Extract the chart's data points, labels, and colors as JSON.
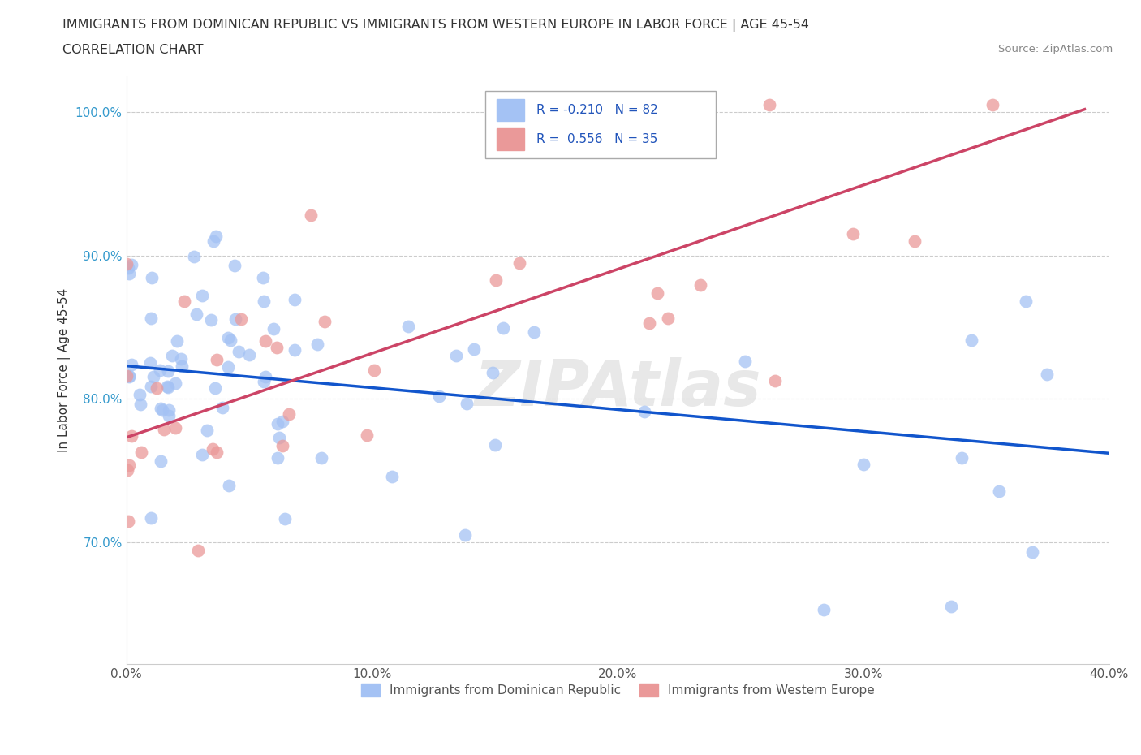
{
  "title_line1": "IMMIGRANTS FROM DOMINICAN REPUBLIC VS IMMIGRANTS FROM WESTERN EUROPE IN LABOR FORCE | AGE 45-54",
  "title_line2": "CORRELATION CHART",
  "source_text": "Source: ZipAtlas.com",
  "ylabel": "In Labor Force | Age 45-54",
  "xmin": 0.0,
  "xmax": 0.4,
  "ymin": 0.615,
  "ymax": 1.025,
  "ytick_labels": [
    "70.0%",
    "80.0%",
    "90.0%",
    "100.0%"
  ],
  "ytick_values": [
    0.7,
    0.8,
    0.9,
    1.0
  ],
  "xtick_labels": [
    "0.0%",
    "10.0%",
    "20.0%",
    "30.0%",
    "40.0%"
  ],
  "xtick_values": [
    0.0,
    0.1,
    0.2,
    0.3,
    0.4
  ],
  "blue_color": "#a4c2f4",
  "pink_color": "#ea9999",
  "blue_line_color": "#1155cc",
  "pink_line_color": "#cc4466",
  "watermark": "ZIPAtlas",
  "blue_trend_x": [
    0.0,
    0.4
  ],
  "blue_trend_y": [
    0.823,
    0.762
  ],
  "pink_trend_x": [
    0.0,
    0.39
  ],
  "pink_trend_y": [
    0.773,
    1.002
  ],
  "title_fontsize": 11.5,
  "axis_label_fontsize": 11,
  "tick_fontsize": 11
}
